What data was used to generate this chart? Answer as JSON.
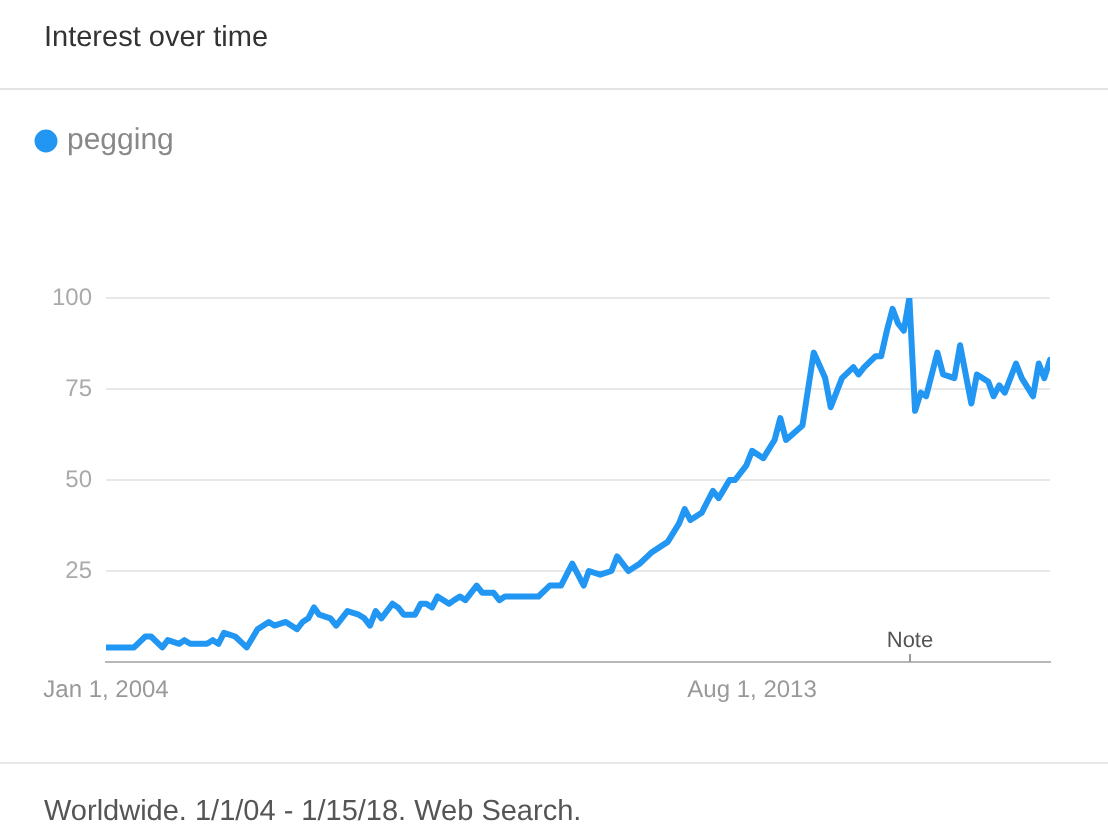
{
  "chart_data": {
    "type": "line",
    "title": "Interest over time",
    "x": [
      "2004-01",
      "2004-06",
      "2004-08",
      "2004-09",
      "2004-11",
      "2004-12",
      "2005-02",
      "2005-03",
      "2005-04",
      "2005-07",
      "2005-08",
      "2005-09",
      "2005-10",
      "2005-12",
      "2006-02",
      "2006-04",
      "2006-06",
      "2006-07",
      "2006-09",
      "2006-11",
      "2006-12",
      "2007-01",
      "2007-02",
      "2007-03",
      "2007-05",
      "2007-06",
      "2007-08",
      "2007-10",
      "2007-11",
      "2007-12",
      "2008-01",
      "2008-02",
      "2008-04",
      "2008-05",
      "2008-06",
      "2008-08",
      "2008-09",
      "2008-10",
      "2008-11",
      "2008-12",
      "2009-02",
      "2009-03",
      "2009-04",
      "2009-05",
      "2009-07",
      "2009-08",
      "2009-10",
      "2009-11",
      "2009-12",
      "2010-02",
      "2010-06",
      "2010-08",
      "2010-10",
      "2010-12",
      "2011-02",
      "2011-03",
      "2011-05",
      "2011-07",
      "2011-08",
      "2011-10",
      "2011-12",
      "2012-02",
      "2012-05",
      "2012-07",
      "2012-08",
      "2012-09",
      "2012-11",
      "2013-01",
      "2013-02",
      "2013-04",
      "2013-05",
      "2013-07",
      "2013-08",
      "2013-10",
      "2013-12",
      "2014-01",
      "2014-02",
      "2014-05",
      "2014-07",
      "2014-09",
      "2014-10",
      "2014-12",
      "2015-02",
      "2015-03",
      "2015-04",
      "2015-06",
      "2015-07",
      "2015-08",
      "2015-09",
      "2015-10",
      "2015-11",
      "2015-12",
      "2016-01",
      "2016-02",
      "2016-03",
      "2016-05",
      "2016-06",
      "2016-08",
      "2016-09",
      "2016-11",
      "2016-12",
      "2017-02",
      "2017-03",
      "2017-04",
      "2017-05",
      "2017-07",
      "2017-08",
      "2017-10",
      "2017-11",
      "2017-12",
      "2018-01"
    ],
    "series": [
      {
        "name": "pegging",
        "color": "#2196f3",
        "values": [
          4,
          4,
          7,
          7,
          4,
          6,
          5,
          6,
          5,
          5,
          6,
          5,
          8,
          7,
          4,
          9,
          11,
          10,
          11,
          9,
          11,
          12,
          15,
          13,
          12,
          10,
          14,
          13,
          12,
          10,
          14,
          12,
          16,
          15,
          13,
          13,
          16,
          16,
          15,
          18,
          16,
          17,
          18,
          17,
          21,
          19,
          19,
          17,
          18,
          18,
          18,
          21,
          21,
          27,
          21,
          25,
          24,
          25,
          29,
          25,
          27,
          30,
          33,
          38,
          42,
          39,
          41,
          47,
          45,
          50,
          50,
          54,
          58,
          56,
          61,
          67,
          61,
          65,
          85,
          78,
          70,
          78,
          81,
          79,
          81,
          84,
          84,
          91,
          97,
          93,
          91,
          100,
          69,
          74,
          73,
          85,
          79,
          78,
          87,
          71,
          79,
          77,
          73,
          76,
          74,
          82,
          78,
          73,
          82,
          78,
          83
        ]
      }
    ],
    "xlim": [
      "2004-01-01",
      "2018-01-01"
    ],
    "xticks": [
      {
        "value": "2004-01-01",
        "label": "Jan 1, 2004"
      },
      {
        "value": "2013-08-01",
        "label": "Aug 1, 2013"
      }
    ],
    "ylim": [
      0,
      100
    ],
    "yticks": [
      25,
      50,
      75,
      100
    ],
    "grid": "y",
    "legend": "top left",
    "marker": "none",
    "line_style": "solid",
    "annotations": [
      "Note",
      "Worldwide. 1/1/04 - 1/15/18. Web Search."
    ]
  }
}
